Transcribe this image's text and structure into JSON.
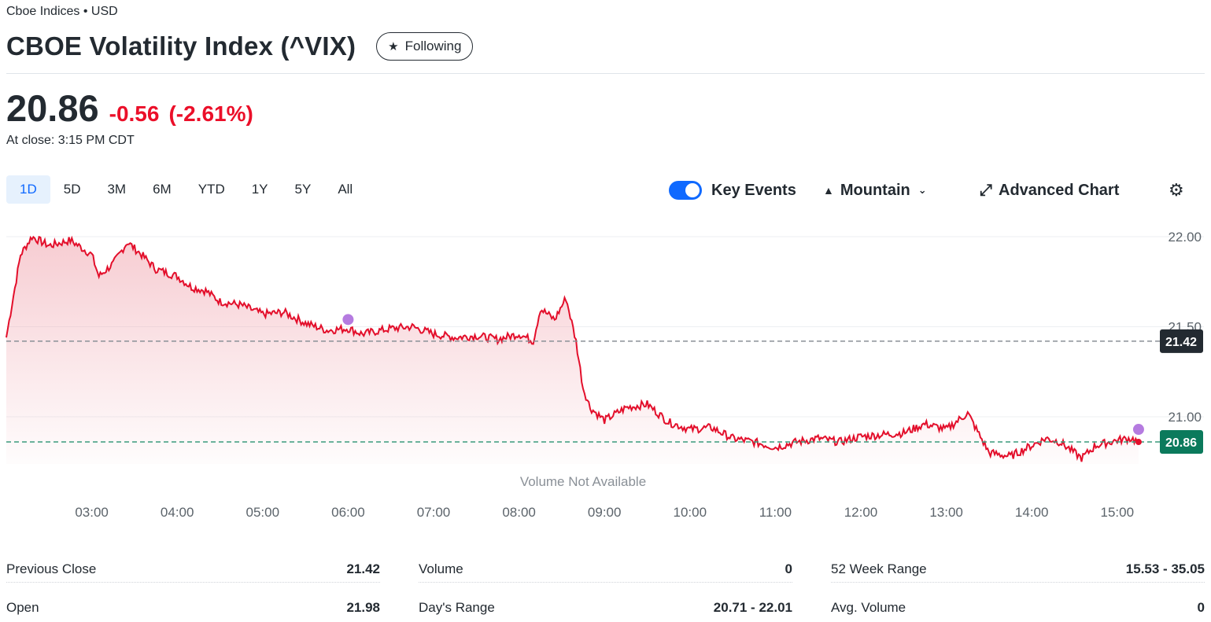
{
  "header": {
    "exchange": "Cboe Indices • USD",
    "title": "CBOE Volatility Index (^VIX)",
    "follow_label": "Following"
  },
  "quote": {
    "price": "20.86",
    "change": "-0.56",
    "change_pct": "(-2.61%)",
    "close_time": "At close: 3:15 PM CDT"
  },
  "ranges": [
    "1D",
    "5D",
    "3M",
    "6M",
    "YTD",
    "1Y",
    "5Y",
    "All"
  ],
  "active_range": "1D",
  "tools": {
    "key_events": "Key Events",
    "chart_type": "Mountain",
    "advanced": "Advanced Chart"
  },
  "colors": {
    "line": "#e30f2b",
    "previous_close_tag": "#232a31",
    "current_tag": "#0b7a5c",
    "event_marker": "#b57be0"
  },
  "chart_data": {
    "type": "area",
    "x_ticks": [
      "03:00",
      "04:00",
      "05:00",
      "06:00",
      "07:00",
      "08:00",
      "09:00",
      "10:00",
      "11:00",
      "12:00",
      "13:00",
      "14:00",
      "15:00"
    ],
    "y_ticks": [
      "22.00",
      "21.50",
      "21.00"
    ],
    "ylim": [
      20.7,
      22.05
    ],
    "previous_close": 21.42,
    "previous_close_label": "21.42",
    "last": 20.86,
    "last_label": "20.86",
    "volume_note": "Volume Not Available",
    "series": [
      {
        "points": [
          [
            "02:00",
            21.44
          ],
          [
            "02:10",
            21.9
          ],
          [
            "02:18",
            22.0
          ],
          [
            "02:30",
            21.95
          ],
          [
            "02:45",
            21.98
          ],
          [
            "03:00",
            21.9
          ],
          [
            "03:05",
            21.78
          ],
          [
            "03:15",
            21.85
          ],
          [
            "03:25",
            21.97
          ],
          [
            "03:35",
            21.9
          ],
          [
            "03:45",
            21.82
          ],
          [
            "04:00",
            21.78
          ],
          [
            "04:10",
            21.72
          ],
          [
            "04:20",
            21.7
          ],
          [
            "04:30",
            21.64
          ],
          [
            "04:45",
            21.62
          ],
          [
            "05:00",
            21.57
          ],
          [
            "05:15",
            21.58
          ],
          [
            "05:30",
            21.52
          ],
          [
            "05:45",
            21.48
          ],
          [
            "06:00",
            21.49
          ],
          [
            "06:10",
            21.46
          ],
          [
            "06:30",
            21.49
          ],
          [
            "06:45",
            21.5
          ],
          [
            "07:00",
            21.46
          ],
          [
            "07:15",
            21.44
          ],
          [
            "07:30",
            21.45
          ],
          [
            "07:45",
            21.43
          ],
          [
            "08:00",
            21.46
          ],
          [
            "08:10",
            21.42
          ],
          [
            "08:15",
            21.6
          ],
          [
            "08:25",
            21.54
          ],
          [
            "08:33",
            21.66
          ],
          [
            "08:40",
            21.42
          ],
          [
            "08:45",
            21.16
          ],
          [
            "08:50",
            21.05
          ],
          [
            "09:00",
            20.98
          ],
          [
            "09:15",
            21.05
          ],
          [
            "09:30",
            21.07
          ],
          [
            "09:45",
            20.97
          ],
          [
            "10:00",
            20.93
          ],
          [
            "10:15",
            20.94
          ],
          [
            "10:30",
            20.88
          ],
          [
            "10:45",
            20.86
          ],
          [
            "11:00",
            20.83
          ],
          [
            "11:15",
            20.86
          ],
          [
            "11:30",
            20.88
          ],
          [
            "11:45",
            20.86
          ],
          [
            "12:00",
            20.89
          ],
          [
            "12:15",
            20.9
          ],
          [
            "12:30",
            20.91
          ],
          [
            "12:45",
            20.96
          ],
          [
            "13:00",
            20.93
          ],
          [
            "13:15",
            21.02
          ],
          [
            "13:30",
            20.8
          ],
          [
            "13:45",
            20.78
          ],
          [
            "14:00",
            20.84
          ],
          [
            "14:10",
            20.88
          ],
          [
            "14:20",
            20.86
          ],
          [
            "14:35",
            20.77
          ],
          [
            "14:45",
            20.84
          ],
          [
            "15:00",
            20.87
          ],
          [
            "15:10",
            20.88
          ],
          [
            "15:15",
            20.86
          ]
        ]
      }
    ],
    "event_markers": [
      [
        "06:00",
        21.54
      ],
      [
        "15:15",
        20.93
      ]
    ]
  },
  "stats": [
    [
      {
        "label": "Previous Close",
        "value": "21.42"
      },
      {
        "label": "Open",
        "value": "21.98"
      }
    ],
    [
      {
        "label": "Volume",
        "value": "0"
      },
      {
        "label": "Day's Range",
        "value": "20.71 - 22.01"
      }
    ],
    [
      {
        "label": "52 Week Range",
        "value": "15.53 - 35.05"
      },
      {
        "label": "Avg. Volume",
        "value": "0"
      }
    ]
  ]
}
